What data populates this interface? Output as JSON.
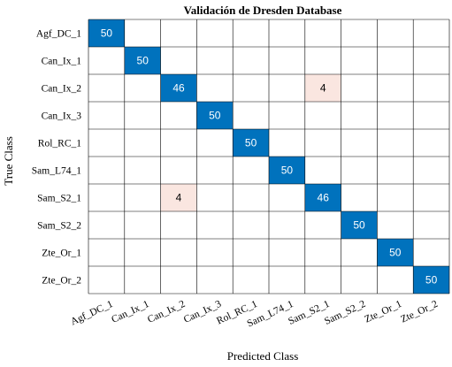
{
  "chart_data": {
    "type": "heatmap",
    "title": "Validación de Dresden Database",
    "xlabel": "Predicted Class",
    "ylabel": "True Class",
    "grid": true,
    "rows": [
      "Agf_DC_1",
      "Can_Ix_1",
      "Can_Ix_2",
      "Can_Ix_3",
      "Rol_RC_1",
      "Sam_L74_1",
      "Sam_S2_1",
      "Sam_S2_2",
      "Zte_Or_1",
      "Zte_Or_2"
    ],
    "columns": [
      "Agf_DC_1",
      "Can_Ix_1",
      "Can_Ix_2",
      "Can_Ix_3",
      "Rol_RC_1",
      "Sam_L74_1",
      "Sam_S2_1",
      "Sam_S2_2",
      "Zte_Or_1",
      "Zte_Or_2"
    ],
    "values": [
      [
        50,
        0,
        0,
        0,
        0,
        0,
        0,
        0,
        0,
        0
      ],
      [
        0,
        50,
        0,
        0,
        0,
        0,
        0,
        0,
        0,
        0
      ],
      [
        0,
        0,
        46,
        0,
        0,
        0,
        4,
        0,
        0,
        0
      ],
      [
        0,
        0,
        0,
        50,
        0,
        0,
        0,
        0,
        0,
        0
      ],
      [
        0,
        0,
        0,
        0,
        50,
        0,
        0,
        0,
        0,
        0
      ],
      [
        0,
        0,
        0,
        0,
        0,
        50,
        0,
        0,
        0,
        0
      ],
      [
        0,
        0,
        4,
        0,
        0,
        0,
        46,
        0,
        0,
        0
      ],
      [
        0,
        0,
        0,
        0,
        0,
        0,
        0,
        50,
        0,
        0
      ],
      [
        0,
        0,
        0,
        0,
        0,
        0,
        0,
        0,
        50,
        0
      ],
      [
        0,
        0,
        0,
        0,
        0,
        0,
        0,
        0,
        0,
        50
      ]
    ],
    "colors": {
      "diagonal": "#0072bd",
      "off_diagonal": "#fae6e0",
      "empty": "#ffffff",
      "grid": "#000000",
      "diagonal_text": "#ffffff",
      "off_diagonal_text": "#000000"
    }
  }
}
